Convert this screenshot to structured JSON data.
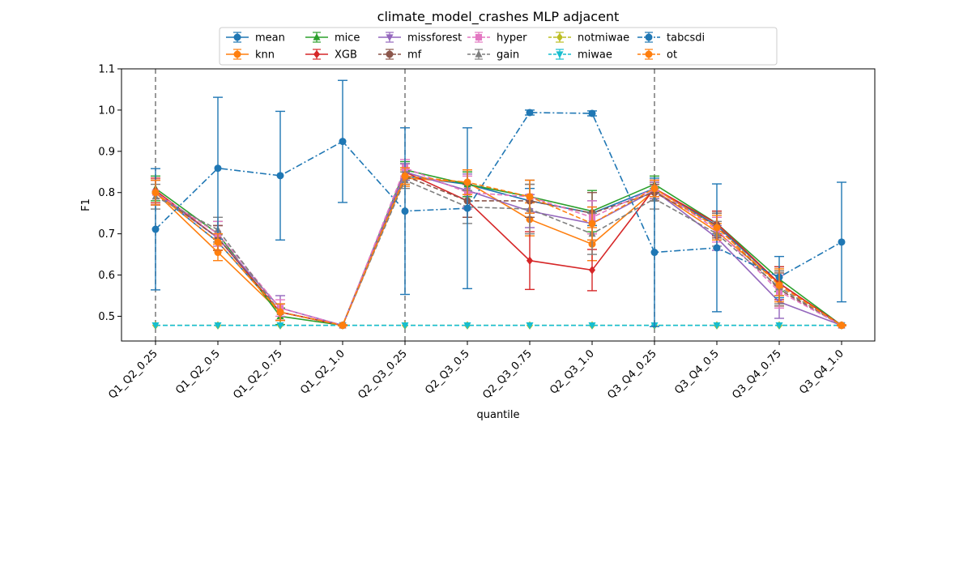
{
  "chart_data": {
    "type": "line",
    "title": "climate_model_crashes MLP adjacent",
    "xlabel": "quantile",
    "ylabel": "F1",
    "ylim": [
      0.44,
      1.1
    ],
    "yticks": [
      0.5,
      0.6,
      0.7,
      0.8,
      0.9,
      1.0,
      1.1
    ],
    "grid": false,
    "legend_location": "top-center",
    "categories": [
      "Q1_Q2_0.25",
      "Q1_Q2_0.5",
      "Q1_Q2_0.75",
      "Q1_Q2_1.0",
      "Q2_Q3_0.25",
      "Q2_Q3_0.5",
      "Q2_Q3_0.75",
      "Q2_Q3_1.0",
      "Q3_Q4_0.25",
      "Q3_Q4_0.5",
      "Q3_Q4_0.75",
      "Q3_Q4_1.0"
    ],
    "vlines_at": [
      "Q1_Q2_0.25",
      "Q2_Q3_0.25",
      "Q3_Q4_0.25"
    ],
    "series": [
      {
        "name": "mean",
        "color": "#1f77b4",
        "marker": "circle",
        "dash": "solid",
        "values": [
          0.8,
          0.68,
          0.51,
          0.478,
          0.84,
          0.82,
          0.78,
          0.75,
          0.81,
          0.72,
          0.58,
          0.478
        ],
        "errors": [
          0.03,
          0.02,
          0.02,
          0.001,
          0.02,
          0.03,
          0.03,
          0.03,
          0.02,
          0.02,
          0.03,
          0.001
        ]
      },
      {
        "name": "knn",
        "color": "#ff7f0e",
        "marker": "circle",
        "dash": "solid",
        "values": [
          0.8,
          0.655,
          0.51,
          0.478,
          0.835,
          0.825,
          0.735,
          0.675,
          0.805,
          0.705,
          0.58,
          0.478
        ],
        "errors": [
          0.03,
          0.02,
          0.02,
          0.001,
          0.02,
          0.03,
          0.04,
          0.04,
          0.02,
          0.02,
          0.03,
          0.001
        ]
      },
      {
        "name": "mice",
        "color": "#2ca02c",
        "marker": "triangle-up",
        "dash": "solid",
        "values": [
          0.81,
          0.7,
          0.5,
          0.478,
          0.855,
          0.82,
          0.79,
          0.755,
          0.82,
          0.725,
          0.59,
          0.478
        ],
        "errors": [
          0.03,
          0.03,
          0.02,
          0.001,
          0.02,
          0.03,
          0.04,
          0.05,
          0.02,
          0.03,
          0.03,
          0.001
        ]
      },
      {
        "name": "XGB",
        "color": "#d62728",
        "marker": "diamond",
        "dash": "solid",
        "values": [
          0.805,
          0.69,
          0.51,
          0.478,
          0.85,
          0.78,
          0.635,
          0.612,
          0.81,
          0.725,
          0.58,
          0.478
        ],
        "errors": [
          0.03,
          0.03,
          0.02,
          0.001,
          0.02,
          0.04,
          0.07,
          0.05,
          0.02,
          0.03,
          0.04,
          0.001
        ]
      },
      {
        "name": "missforest",
        "color": "#9467bd",
        "marker": "triangle-down",
        "dash": "solid",
        "values": [
          0.8,
          0.69,
          0.52,
          0.478,
          0.85,
          0.805,
          0.755,
          0.725,
          0.805,
          0.69,
          0.535,
          0.478
        ],
        "errors": [
          0.03,
          0.03,
          0.03,
          0.001,
          0.02,
          0.04,
          0.04,
          0.04,
          0.02,
          0.03,
          0.04,
          0.001
        ]
      },
      {
        "name": "mf",
        "color": "#8c564b",
        "marker": "circle",
        "dash": "dashed",
        "values": [
          0.8,
          0.69,
          0.51,
          0.478,
          0.84,
          0.78,
          0.78,
          0.75,
          0.8,
          0.72,
          0.565,
          0.478
        ],
        "errors": [
          0.03,
          0.03,
          0.02,
          0.001,
          0.02,
          0.04,
          0.04,
          0.05,
          0.02,
          0.03,
          0.04,
          0.001
        ]
      },
      {
        "name": "hyper",
        "color": "#e377c2",
        "marker": "square",
        "dash": "dashed",
        "values": [
          0.8,
          0.7,
          0.52,
          0.478,
          0.86,
          0.8,
          0.79,
          0.74,
          0.81,
          0.71,
          0.56,
          0.478
        ],
        "errors": [
          0.03,
          0.03,
          0.02,
          0.001,
          0.02,
          0.04,
          0.04,
          0.04,
          0.02,
          0.03,
          0.04,
          0.001
        ]
      },
      {
        "name": "gain",
        "color": "#7f7f7f",
        "marker": "triangle-up",
        "dash": "dashed",
        "values": [
          0.79,
          0.71,
          0.51,
          0.478,
          0.83,
          0.765,
          0.76,
          0.7,
          0.785,
          0.7,
          0.57,
          0.478
        ],
        "errors": [
          0.03,
          0.03,
          0.02,
          0.001,
          0.02,
          0.04,
          0.06,
          0.05,
          0.025,
          0.03,
          0.04,
          0.001
        ]
      },
      {
        "name": "notmiwae",
        "color": "#bcbd22",
        "marker": "diamond",
        "dash": "dashed",
        "values": [
          0.478,
          0.478,
          0.478,
          0.478,
          0.478,
          0.478,
          0.478,
          0.478,
          0.478,
          0.478,
          0.478,
          0.478
        ],
        "errors": [
          0,
          0,
          0,
          0,
          0,
          0,
          0,
          0,
          0,
          0,
          0,
          0
        ]
      },
      {
        "name": "miwae",
        "color": "#17becf",
        "marker": "triangle-down",
        "dash": "dashed",
        "values": [
          0.478,
          0.478,
          0.478,
          0.478,
          0.478,
          0.478,
          0.478,
          0.478,
          0.478,
          0.478,
          0.478,
          0.478
        ],
        "errors": [
          0,
          0,
          0,
          0,
          0,
          0,
          0,
          0,
          0,
          0,
          0,
          0
        ]
      },
      {
        "name": "tabcsdi",
        "color": "#1f77b4",
        "marker": "circle",
        "dash": "dashdot",
        "values": [
          0.711,
          0.859,
          0.841,
          0.924,
          0.755,
          0.762,
          0.994,
          0.992,
          0.655,
          0.666,
          0.595,
          0.68
        ],
        "errors": [
          0.147,
          0.172,
          0.156,
          0.148,
          0.202,
          0.195,
          0.006,
          0.006,
          0.18,
          0.155,
          0.05,
          0.145
        ]
      },
      {
        "name": "ot",
        "color": "#ff7f0e",
        "marker": "circle",
        "dash": "dashed",
        "values": [
          0.8,
          0.68,
          0.51,
          0.478,
          0.84,
          0.825,
          0.79,
          0.725,
          0.81,
          0.715,
          0.575,
          0.478
        ],
        "errors": [
          0.03,
          0.02,
          0.02,
          0.001,
          0.02,
          0.03,
          0.04,
          0.04,
          0.02,
          0.03,
          0.04,
          0.001
        ]
      }
    ]
  }
}
